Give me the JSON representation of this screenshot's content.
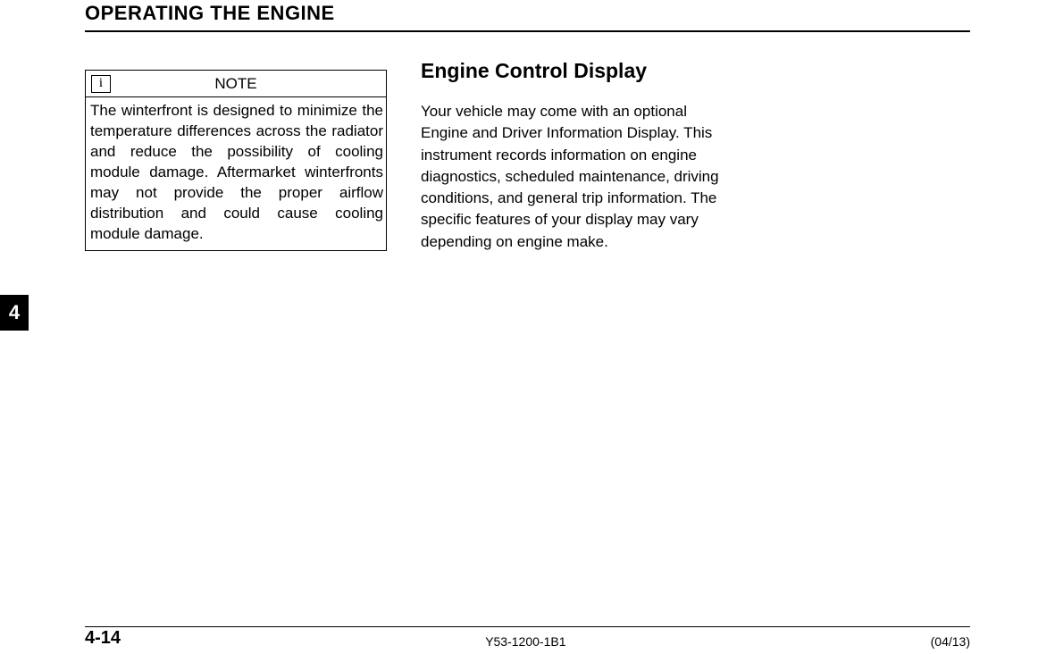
{
  "header": {
    "title": "OPERATING THE ENGINE"
  },
  "chapter_tab": "4",
  "note_box": {
    "icon_glyph": "i",
    "label": "NOTE",
    "body": "The winterfront is designed to min­imize the temperature differences across the radiator and reduce the possibility of cooling module damage. Aftermarket winterfronts may not pro­vide the proper airflow distribution and could cause cooling module damage."
  },
  "section": {
    "heading": "Engine Control Display",
    "body": "Your vehicle may come with an optional Engine and Driver Information Display. This instrument records information on engine diagnostics, scheduled maintenance, driving conditions, and general trip information.  The specific features of your display may vary depending on engine make."
  },
  "footer": {
    "page_number": "4-14",
    "doc_id": "Y53-1200-1B1",
    "doc_date": "(04/13)"
  }
}
